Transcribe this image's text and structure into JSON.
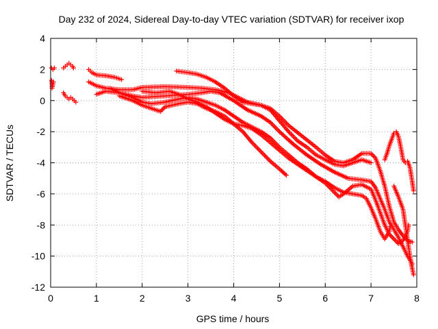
{
  "chart_data": {
    "type": "scatter",
    "title": "Day 232 of 2024, Sidereal Day-to-day VTEC variation (SDTVAR) for receiver ixop",
    "xlabel": "GPS time / hours",
    "ylabel": "SDTVAR / TECUs",
    "xlim": [
      0,
      8
    ],
    "ylim": [
      -12,
      4
    ],
    "xticks": [
      0,
      1,
      2,
      3,
      4,
      5,
      6,
      7,
      8
    ],
    "yticks": [
      -12,
      -10,
      -8,
      -6,
      -4,
      -2,
      0,
      2,
      4
    ],
    "xtick_labels": [
      "0",
      "1",
      "2",
      "3",
      "4",
      "5",
      "6",
      "7",
      "8"
    ],
    "ytick_labels": [
      "-12",
      "-10",
      "-8",
      "-6",
      "-4",
      "-2",
      "0",
      "2",
      "4"
    ],
    "grid": true,
    "marker": "+",
    "color": "#ff0000",
    "series": [
      {
        "name": "track-early-a",
        "points": [
          [
            0.02,
            2.1
          ],
          [
            0.05,
            2.0
          ],
          [
            0.08,
            2.1
          ]
        ]
      },
      {
        "name": "track-early-b",
        "points": [
          [
            0.02,
            1.3
          ],
          [
            0.03,
            1.0
          ],
          [
            0.03,
            0.8
          ],
          [
            0.06,
            1.2
          ]
        ]
      },
      {
        "name": "track-early-c",
        "points": [
          [
            0.28,
            2.1
          ],
          [
            0.32,
            2.2
          ],
          [
            0.36,
            2.3
          ],
          [
            0.4,
            2.4
          ],
          [
            0.44,
            2.3
          ],
          [
            0.48,
            2.2
          ],
          [
            0.5,
            2.1
          ]
        ]
      },
      {
        "name": "track-early-d",
        "points": [
          [
            0.28,
            0.5
          ],
          [
            0.32,
            0.3
          ],
          [
            0.36,
            0.2
          ],
          [
            0.4,
            0.1
          ],
          [
            0.44,
            0.2
          ],
          [
            0.48,
            0.1
          ],
          [
            0.55,
            -0.1
          ]
        ]
      },
      {
        "name": "track-1",
        "points": [
          [
            0.83,
            2.0
          ],
          [
            0.9,
            1.8
          ],
          [
            1.0,
            1.65
          ],
          [
            1.2,
            1.6
          ],
          [
            1.4,
            1.5
          ],
          [
            1.55,
            1.35
          ]
        ]
      },
      {
        "name": "track-2",
        "points": [
          [
            0.83,
            1.2
          ],
          [
            0.9,
            1.1
          ],
          [
            1.0,
            0.95
          ],
          [
            1.2,
            0.8
          ],
          [
            1.5,
            0.7
          ],
          [
            1.8,
            0.7
          ],
          [
            2.0,
            0.85
          ],
          [
            2.5,
            0.9
          ],
          [
            3.0,
            0.85
          ],
          [
            3.3,
            0.8
          ],
          [
            3.6,
            0.7
          ],
          [
            3.9,
            0.5
          ],
          [
            4.1,
            0.2
          ],
          [
            4.3,
            -0.1
          ],
          [
            4.6,
            -0.3
          ],
          [
            4.8,
            -0.5
          ],
          [
            5.0,
            -1.0
          ],
          [
            5.2,
            -1.6
          ],
          [
            5.5,
            -2.3
          ],
          [
            5.8,
            -3.0
          ],
          [
            6.0,
            -3.5
          ],
          [
            6.2,
            -3.9
          ],
          [
            6.4,
            -4.0
          ],
          [
            6.6,
            -3.8
          ],
          [
            6.8,
            -3.4
          ],
          [
            7.0,
            -3.4
          ],
          [
            7.1,
            -3.7
          ],
          [
            7.2,
            -4.5
          ],
          [
            7.3,
            -5.5
          ],
          [
            7.4,
            -6.8
          ],
          [
            7.5,
            -7.8
          ],
          [
            7.6,
            -8.3
          ],
          [
            7.7,
            -8.7
          ],
          [
            7.8,
            -9.0
          ],
          [
            7.9,
            -9.1
          ]
        ]
      },
      {
        "name": "track-3",
        "points": [
          [
            1.0,
            0.4
          ],
          [
            1.2,
            0.6
          ],
          [
            1.5,
            0.5
          ],
          [
            1.8,
            0.3
          ],
          [
            2.0,
            0.2
          ],
          [
            2.5,
            0.3
          ],
          [
            3.0,
            0.4
          ],
          [
            3.3,
            0.5
          ],
          [
            3.5,
            0.6
          ],
          [
            3.7,
            0.5
          ],
          [
            4.0,
            0.0
          ],
          [
            4.3,
            -0.6
          ],
          [
            4.6,
            -1.0
          ],
          [
            4.8,
            -1.4
          ],
          [
            5.0,
            -2.0
          ],
          [
            5.3,
            -2.8
          ],
          [
            5.6,
            -3.5
          ],
          [
            5.9,
            -4.1
          ],
          [
            6.2,
            -4.6
          ],
          [
            6.5,
            -5.0
          ],
          [
            6.8,
            -5.1
          ],
          [
            7.0,
            -5.2
          ],
          [
            7.1,
            -5.6
          ],
          [
            7.2,
            -6.3
          ],
          [
            7.3,
            -7.0
          ],
          [
            7.4,
            -7.8
          ],
          [
            7.5,
            -8.3
          ],
          [
            7.6,
            -8.8
          ],
          [
            7.7,
            -9.4
          ],
          [
            7.8,
            -10.0
          ],
          [
            7.9,
            -10.5
          ]
        ]
      },
      {
        "name": "track-4",
        "points": [
          [
            1.3,
            0.8
          ],
          [
            1.5,
            0.5
          ],
          [
            1.8,
            0.2
          ],
          [
            2.0,
            -0.1
          ],
          [
            2.2,
            -0.2
          ],
          [
            2.5,
            -0.1
          ],
          [
            2.8,
            0.1
          ],
          [
            3.0,
            0.2
          ],
          [
            3.2,
            0.1
          ],
          [
            3.4,
            -0.1
          ],
          [
            3.6,
            -0.3
          ],
          [
            3.8,
            -0.6
          ],
          [
            4.0,
            -1.0
          ],
          [
            4.2,
            -1.4
          ],
          [
            4.4,
            -1.7
          ],
          [
            4.6,
            -2.0
          ],
          [
            4.8,
            -2.4
          ],
          [
            5.0,
            -3.0
          ],
          [
            5.2,
            -3.5
          ],
          [
            5.4,
            -4.0
          ],
          [
            5.6,
            -4.4
          ],
          [
            5.8,
            -4.9
          ],
          [
            6.0,
            -5.3
          ],
          [
            6.2,
            -5.9
          ],
          [
            6.3,
            -6.2
          ],
          [
            6.4,
            -6.0
          ],
          [
            6.6,
            -5.5
          ],
          [
            6.8,
            -5.4
          ],
          [
            7.0,
            -5.7
          ],
          [
            7.1,
            -6.4
          ],
          [
            7.2,
            -7.2
          ],
          [
            7.3,
            -8.0
          ],
          [
            7.4,
            -8.6
          ],
          [
            7.5,
            -8.9
          ],
          [
            7.6,
            -9.2
          ],
          [
            7.7,
            -9.0
          ],
          [
            7.8,
            -8.4
          ],
          [
            7.82,
            -8.0
          ]
        ]
      },
      {
        "name": "track-5",
        "points": [
          [
            1.5,
            0.3
          ],
          [
            1.8,
            0.0
          ],
          [
            2.0,
            -0.3
          ],
          [
            2.2,
            -0.5
          ],
          [
            2.4,
            -0.7
          ],
          [
            2.5,
            -0.4
          ],
          [
            2.8,
            -0.2
          ],
          [
            3.0,
            -0.1
          ],
          [
            3.2,
            -0.2
          ],
          [
            3.4,
            -0.5
          ],
          [
            3.6,
            -0.7
          ],
          [
            3.8,
            -1.0
          ],
          [
            4.0,
            -1.5
          ],
          [
            4.2,
            -2.0
          ],
          [
            4.4,
            -2.7
          ],
          [
            4.6,
            -3.3
          ],
          [
            4.8,
            -3.9
          ],
          [
            5.0,
            -4.4
          ],
          [
            5.15,
            -4.8
          ]
        ]
      },
      {
        "name": "track-6",
        "points": [
          [
            2.0,
            0.6
          ],
          [
            2.3,
            0.5
          ],
          [
            2.6,
            0.6
          ],
          [
            2.8,
            0.4
          ],
          [
            3.0,
            0.1
          ],
          [
            3.2,
            -0.1
          ],
          [
            3.4,
            -0.4
          ],
          [
            3.6,
            -0.8
          ],
          [
            3.8,
            -1.2
          ],
          [
            4.0,
            -1.5
          ],
          [
            4.2,
            -1.6
          ],
          [
            4.4,
            -1.8
          ],
          [
            4.6,
            -2.2
          ],
          [
            4.8,
            -2.7
          ],
          [
            5.0,
            -3.2
          ],
          [
            5.2,
            -3.7
          ],
          [
            5.4,
            -4.1
          ],
          [
            5.6,
            -4.5
          ],
          [
            5.8,
            -4.9
          ],
          [
            6.0,
            -5.2
          ],
          [
            6.2,
            -5.6
          ],
          [
            6.4,
            -5.9
          ],
          [
            6.6,
            -6.0
          ],
          [
            6.8,
            -6.1
          ],
          [
            6.9,
            -6.3
          ],
          [
            7.0,
            -6.9
          ],
          [
            7.1,
            -7.6
          ],
          [
            7.2,
            -8.4
          ],
          [
            7.3,
            -8.9
          ],
          [
            7.4,
            -8.4
          ],
          [
            7.42,
            -8.1
          ]
        ]
      },
      {
        "name": "track-7",
        "points": [
          [
            2.75,
            1.9
          ],
          [
            3.0,
            1.8
          ],
          [
            3.2,
            1.7
          ],
          [
            3.4,
            1.5
          ],
          [
            3.6,
            1.2
          ],
          [
            3.8,
            0.8
          ],
          [
            4.0,
            0.3
          ],
          [
            4.2,
            -0.1
          ],
          [
            4.4,
            -0.2
          ],
          [
            4.6,
            -0.3
          ],
          [
            4.8,
            -0.6
          ],
          [
            5.0,
            -1.3
          ],
          [
            5.2,
            -2.0
          ],
          [
            5.4,
            -2.6
          ],
          [
            5.6,
            -3.0
          ],
          [
            5.8,
            -3.5
          ],
          [
            6.0,
            -3.8
          ],
          [
            6.2,
            -4.1
          ],
          [
            6.4,
            -4.2
          ],
          [
            6.6,
            -4.0
          ],
          [
            6.8,
            -3.8
          ],
          [
            7.0,
            -4.0
          ]
        ]
      },
      {
        "name": "track-8",
        "points": [
          [
            7.3,
            -3.8
          ],
          [
            7.35,
            -3.4
          ],
          [
            7.4,
            -2.9
          ],
          [
            7.45,
            -2.5
          ],
          [
            7.5,
            -2.1
          ],
          [
            7.55,
            -2.0
          ],
          [
            7.6,
            -2.3
          ],
          [
            7.65,
            -3.0
          ],
          [
            7.7,
            -3.8
          ],
          [
            7.75,
            -4.0
          ],
          [
            7.8,
            -3.9
          ],
          [
            7.85,
            -4.3
          ],
          [
            7.9,
            -5.2
          ],
          [
            7.93,
            -5.8
          ]
        ]
      },
      {
        "name": "track-9",
        "points": [
          [
            7.5,
            -5.5
          ],
          [
            7.6,
            -6.2
          ],
          [
            7.7,
            -7.0
          ],
          [
            7.75,
            -8.0
          ],
          [
            7.8,
            -9.0
          ],
          [
            7.85,
            -10.0
          ],
          [
            7.9,
            -10.8
          ],
          [
            7.93,
            -11.2
          ]
        ]
      }
    ]
  }
}
